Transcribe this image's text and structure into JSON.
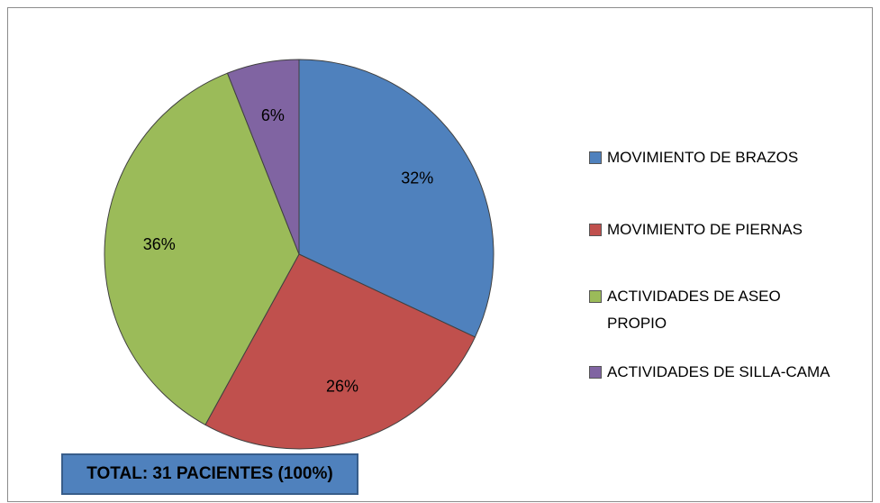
{
  "chart_data": {
    "type": "pie",
    "categories": [
      "MOVIMIENTO DE BRAZOS",
      "MOVIMIENTO DE PIERNAS",
      "ACTIVIDADES DE ASEO PROPIO",
      "ACTIVIDADES DE SILLA-CAMA"
    ],
    "values": [
      32,
      26,
      36,
      6
    ],
    "value_labels": [
      "32%",
      "26%",
      "36%",
      "6%"
    ],
    "colors": [
      "#4f81bd",
      "#c0504d",
      "#9bbb59",
      "#8064a2"
    ],
    "legend": "right",
    "annotation": "TOTAL: 31 PACIENTES (100%)"
  }
}
